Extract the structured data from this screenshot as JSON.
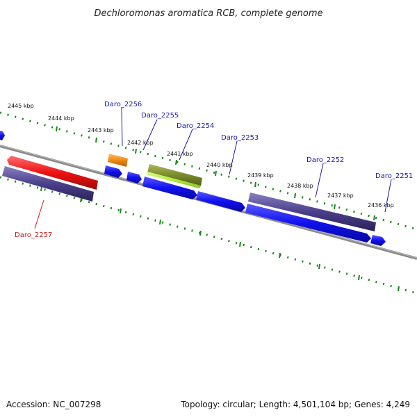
{
  "title": "Dechloromonas aromatica RCB, complete genome",
  "footer": {
    "accession": "Accession: NC_007298",
    "topology": "Topology: circular; Length: 4,501,104 bp; Genes: 4,249"
  },
  "kbp_ticks": [
    "2445 kbp",
    "2444 kbp",
    "2443 kbp",
    "2442 kbp",
    "2441 kbp",
    "2440 kbp",
    "2439 kbp",
    "2438 kbp",
    "2437 kbp",
    "2436 kbp"
  ],
  "gene_labels": [
    "Daro_2256",
    "Daro_2255",
    "Daro_2254",
    "Daro_2253",
    "Daro_2252",
    "Daro_2251",
    "Daro_2257"
  ],
  "colors": {
    "backbone": "#808080",
    "tick_dots": "#1a8a1a",
    "label_blue": "#1a1aa8",
    "label_red": "#cc1a1a",
    "gene_blue": "#1010ee",
    "gene_purple": "#4a3f8a",
    "gene_red": "#ee1111",
    "gene_orange": "#f08a10",
    "gene_olive": "#7a8a2a",
    "gene_lime": "#b0ee40"
  }
}
